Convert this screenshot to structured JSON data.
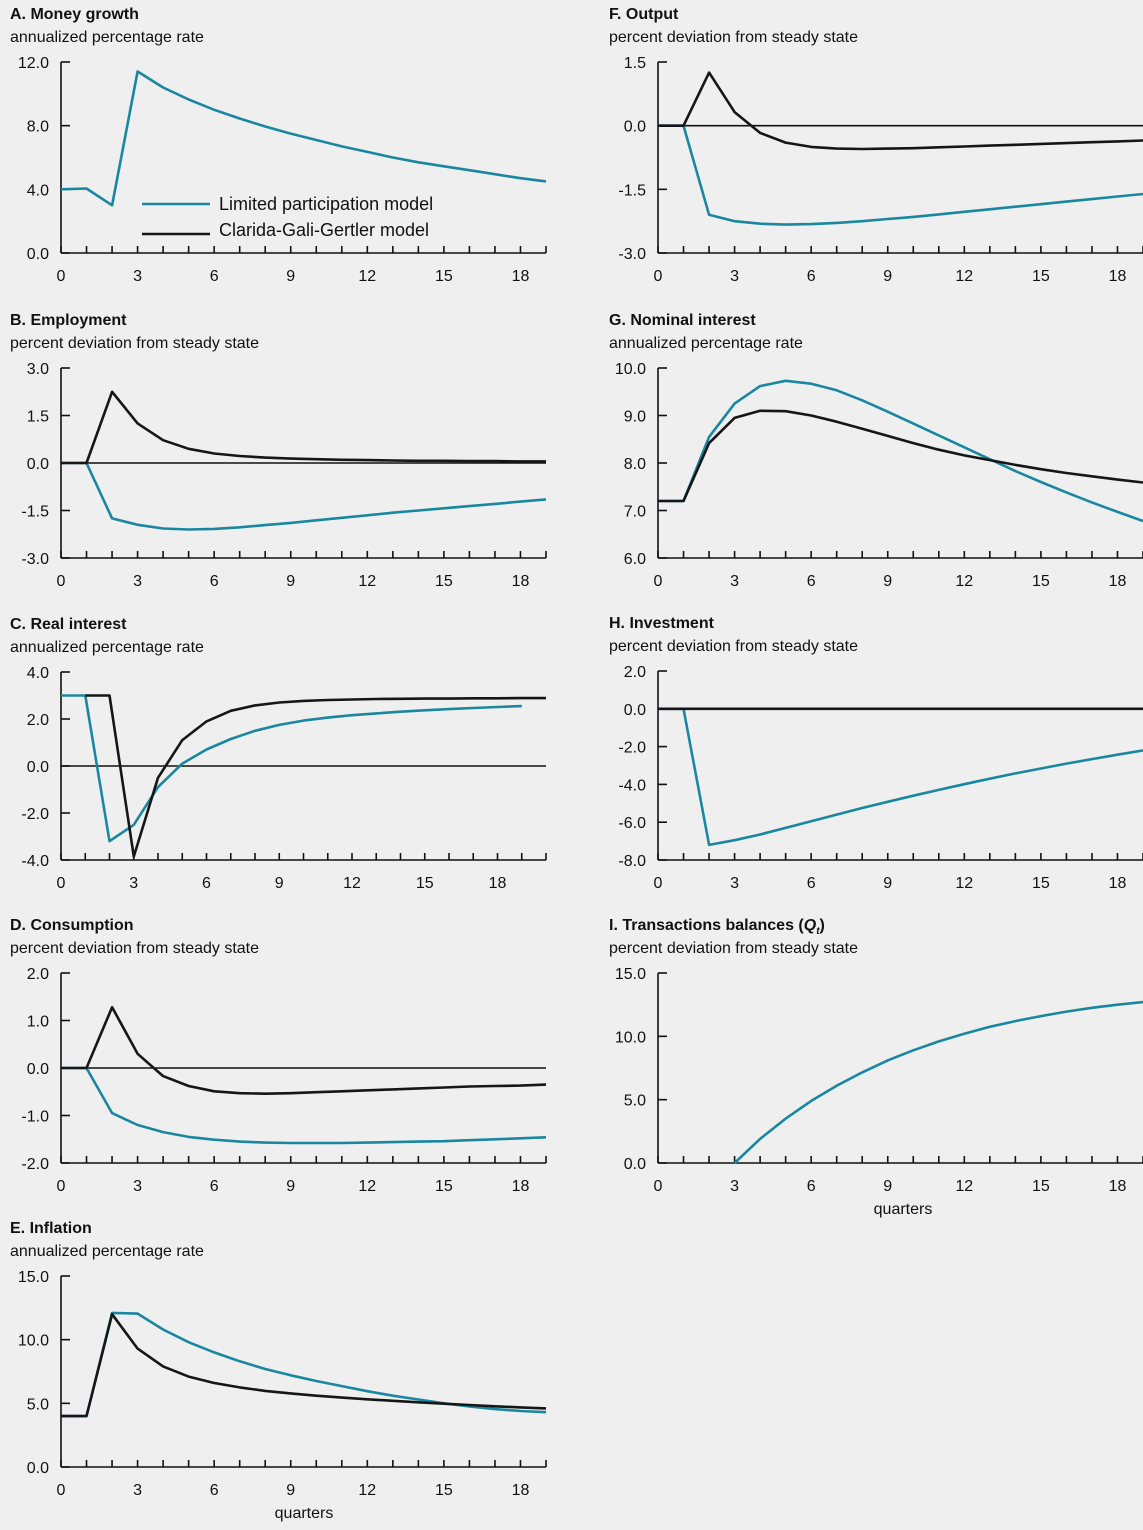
{
  "colors": {
    "limited": "#1a87a0",
    "cgg": "#161616",
    "axis": "#111111",
    "background": "#efefef"
  },
  "legend": {
    "items": [
      {
        "label": "Limited participation model",
        "color": "#1a87a0"
      },
      {
        "label": "Clarida-Gali-Gertler model",
        "color": "#161616"
      }
    ]
  },
  "chart_data": [
    {
      "id": "A",
      "type": "line",
      "title": "A. Money growth",
      "subtitle": "annualized percentage rate",
      "xlabel": "",
      "xlim": [
        0,
        19
      ],
      "xticks": [
        0,
        3,
        6,
        9,
        12,
        15,
        18
      ],
      "ylim": [
        0,
        12
      ],
      "yticks": [
        "0.0",
        "4.0",
        "8.0",
        "12.0"
      ],
      "grid": false,
      "zero_line": false,
      "legend": "inside-bottom-left",
      "series": [
        {
          "name": "Limited participation model",
          "color": "#1a87a0",
          "x": [
            0,
            1,
            2,
            3,
            4,
            5,
            6,
            7,
            8,
            9,
            10,
            11,
            12,
            13,
            14,
            15,
            16,
            17,
            18,
            19
          ],
          "y": [
            4.0,
            4.05,
            3.0,
            11.4,
            10.4,
            9.65,
            9.0,
            8.45,
            7.95,
            7.5,
            7.1,
            6.7,
            6.35,
            6.0,
            5.7,
            5.45,
            5.2,
            4.95,
            4.7,
            4.5
          ]
        }
      ]
    },
    {
      "id": "B",
      "type": "line",
      "title": "B. Employment",
      "subtitle": "percent deviation from steady state",
      "xlabel": "",
      "xlim": [
        0,
        19
      ],
      "xticks": [
        0,
        3,
        6,
        9,
        12,
        15,
        18
      ],
      "ylim": [
        -3,
        3
      ],
      "yticks": [
        "-3.0",
        "-1.5",
        "0.0",
        "1.5",
        "3.0"
      ],
      "grid": false,
      "zero_line": true,
      "series": [
        {
          "name": "Limited participation model",
          "color": "#1a87a0",
          "x": [
            0,
            1,
            2,
            3,
            4,
            5,
            6,
            7,
            8,
            9,
            10,
            11,
            12,
            13,
            14,
            15,
            16,
            17,
            18,
            19
          ],
          "y": [
            0,
            0,
            -1.75,
            -1.95,
            -2.07,
            -2.1,
            -2.08,
            -2.03,
            -1.96,
            -1.89,
            -1.81,
            -1.73,
            -1.65,
            -1.57,
            -1.5,
            -1.43,
            -1.36,
            -1.29,
            -1.22,
            -1.15
          ]
        },
        {
          "name": "Clarida-Gali-Gertler model",
          "color": "#161616",
          "x": [
            0,
            1,
            2,
            3,
            4,
            5,
            6,
            7,
            8,
            9,
            10,
            11,
            12,
            13,
            14,
            15,
            16,
            17,
            18,
            19
          ],
          "y": [
            0,
            0,
            2.25,
            1.25,
            0.72,
            0.45,
            0.3,
            0.22,
            0.17,
            0.14,
            0.12,
            0.1,
            0.09,
            0.08,
            0.07,
            0.07,
            0.06,
            0.06,
            0.05,
            0.05
          ]
        }
      ]
    },
    {
      "id": "C",
      "type": "line",
      "title": "C. Real interest",
      "subtitle": "annualized percentage rate",
      "xlabel": "",
      "xlim": [
        0,
        20
      ],
      "xticks": [
        0,
        3,
        6,
        9,
        12,
        15,
        18
      ],
      "ylim": [
        -4,
        4
      ],
      "yticks": [
        "-4.0",
        "-2.0",
        "0.0",
        "2.0",
        "4.0"
      ],
      "grid": false,
      "zero_line": true,
      "series": [
        {
          "name": "Limited participation model",
          "color": "#1a87a0",
          "x": [
            0,
            1,
            2,
            3,
            4,
            5,
            6,
            7,
            8,
            9,
            10,
            11,
            12,
            13,
            14,
            15,
            16,
            17,
            18,
            19
          ],
          "y": [
            3.0,
            3.0,
            -3.2,
            -2.5,
            -0.9,
            0.1,
            0.7,
            1.15,
            1.5,
            1.75,
            1.93,
            2.06,
            2.16,
            2.24,
            2.31,
            2.37,
            2.42,
            2.47,
            2.51,
            2.55
          ]
        },
        {
          "name": "Clarida-Gali-Gertler model",
          "color": "#161616",
          "x": [
            1,
            2,
            3,
            4,
            5,
            6,
            7,
            8,
            9,
            10,
            11,
            12,
            13,
            14,
            15,
            16,
            17,
            18,
            19,
            20
          ],
          "y": [
            3.0,
            3.0,
            -3.85,
            -0.5,
            1.1,
            1.9,
            2.35,
            2.58,
            2.7,
            2.77,
            2.81,
            2.83,
            2.85,
            2.86,
            2.87,
            2.87,
            2.88,
            2.88,
            2.89,
            2.89
          ]
        }
      ]
    },
    {
      "id": "D",
      "type": "line",
      "title": "D. Consumption",
      "subtitle": "percent deviation from steady state",
      "xlabel": "",
      "xlim": [
        0,
        19
      ],
      "xticks": [
        0,
        3,
        6,
        9,
        12,
        15,
        18
      ],
      "ylim": [
        -2,
        2
      ],
      "yticks": [
        "-2.0",
        "-1.0",
        "0.0",
        "1.0",
        "2.0"
      ],
      "grid": false,
      "zero_line": true,
      "series": [
        {
          "name": "Limited participation model",
          "color": "#1a87a0",
          "x": [
            0,
            1,
            2,
            3,
            4,
            5,
            6,
            7,
            8,
            9,
            10,
            11,
            12,
            13,
            14,
            15,
            16,
            17,
            18,
            19
          ],
          "y": [
            0,
            0,
            -0.95,
            -1.2,
            -1.35,
            -1.45,
            -1.51,
            -1.55,
            -1.57,
            -1.58,
            -1.58,
            -1.58,
            -1.57,
            -1.56,
            -1.55,
            -1.54,
            -1.52,
            -1.5,
            -1.48,
            -1.46
          ]
        },
        {
          "name": "Clarida-Gali-Gertler model",
          "color": "#161616",
          "x": [
            0,
            1,
            2,
            3,
            4,
            5,
            6,
            7,
            8,
            9,
            10,
            11,
            12,
            13,
            14,
            15,
            16,
            17,
            18,
            19
          ],
          "y": [
            0,
            0,
            1.28,
            0.3,
            -0.17,
            -0.38,
            -0.49,
            -0.53,
            -0.54,
            -0.53,
            -0.51,
            -0.49,
            -0.47,
            -0.45,
            -0.43,
            -0.41,
            -0.39,
            -0.38,
            -0.37,
            -0.35
          ]
        }
      ]
    },
    {
      "id": "E",
      "type": "line",
      "title": "E. Inflation",
      "subtitle": "annualized percentage rate",
      "xlabel": "quarters",
      "xlim": [
        0,
        19
      ],
      "xticks": [
        0,
        3,
        6,
        9,
        12,
        15,
        18
      ],
      "ylim": [
        0,
        15
      ],
      "yticks": [
        "0.0",
        "5.0",
        "10.0",
        "15.0"
      ],
      "grid": false,
      "zero_line": false,
      "series": [
        {
          "name": "Limited participation model",
          "color": "#1a87a0",
          "x": [
            0,
            1,
            2,
            3,
            4,
            5,
            6,
            7,
            8,
            9,
            10,
            11,
            12,
            13,
            14,
            15,
            16,
            17,
            18,
            19
          ],
          "y": [
            4.0,
            4.0,
            12.1,
            12.05,
            10.8,
            9.8,
            9.0,
            8.3,
            7.7,
            7.2,
            6.75,
            6.35,
            5.95,
            5.6,
            5.3,
            5.0,
            4.75,
            4.55,
            4.4,
            4.3
          ]
        },
        {
          "name": "Clarida-Gali-Gertler model",
          "color": "#161616",
          "x": [
            0,
            1,
            2,
            3,
            4,
            5,
            6,
            7,
            8,
            9,
            10,
            11,
            12,
            13,
            14,
            15,
            16,
            17,
            18,
            19
          ],
          "y": [
            4.0,
            4.0,
            12.0,
            9.3,
            7.9,
            7.1,
            6.6,
            6.25,
            5.98,
            5.78,
            5.6,
            5.45,
            5.32,
            5.2,
            5.08,
            4.97,
            4.87,
            4.77,
            4.68,
            4.6
          ]
        }
      ]
    },
    {
      "id": "F",
      "type": "line",
      "title": "F. Output",
      "subtitle": "percent deviation from steady state",
      "xlabel": "",
      "xlim": [
        0,
        19
      ],
      "xticks": [
        0,
        3,
        6,
        9,
        12,
        15,
        18
      ],
      "ylim": [
        -3,
        1.5
      ],
      "yticks": [
        "-3.0",
        "-1.5",
        "0.0",
        "1.5"
      ],
      "grid": false,
      "zero_line": true,
      "series": [
        {
          "name": "Limited participation model",
          "color": "#1a87a0",
          "x": [
            0,
            1,
            2,
            3,
            4,
            5,
            6,
            7,
            8,
            9,
            10,
            11,
            12,
            13,
            14,
            15,
            16,
            17,
            18,
            19
          ],
          "y": [
            0,
            0,
            -2.1,
            -2.25,
            -2.31,
            -2.33,
            -2.32,
            -2.29,
            -2.25,
            -2.2,
            -2.15,
            -2.09,
            -2.03,
            -1.97,
            -1.91,
            -1.85,
            -1.79,
            -1.73,
            -1.67,
            -1.61
          ]
        },
        {
          "name": "Clarida-Gali-Gertler model",
          "color": "#161616",
          "x": [
            0,
            1,
            2,
            3,
            4,
            5,
            6,
            7,
            8,
            9,
            10,
            11,
            12,
            13,
            14,
            15,
            16,
            17,
            18,
            19
          ],
          "y": [
            0,
            0,
            1.25,
            0.32,
            -0.17,
            -0.4,
            -0.5,
            -0.54,
            -0.55,
            -0.54,
            -0.53,
            -0.51,
            -0.49,
            -0.47,
            -0.45,
            -0.43,
            -0.41,
            -0.39,
            -0.37,
            -0.35
          ]
        }
      ]
    },
    {
      "id": "G",
      "type": "line",
      "title": "G. Nominal interest",
      "subtitle": "annualized percentage rate",
      "xlabel": "",
      "xlim": [
        0,
        19
      ],
      "xticks": [
        0,
        3,
        6,
        9,
        12,
        15,
        18
      ],
      "ylim": [
        6,
        10
      ],
      "yticks": [
        "6.0",
        "7.0",
        "8.0",
        "9.0",
        "10.0"
      ],
      "grid": false,
      "zero_line": false,
      "series": [
        {
          "name": "Limited participation model",
          "color": "#1a87a0",
          "x": [
            0,
            1,
            2,
            3,
            4,
            5,
            6,
            7,
            8,
            9,
            10,
            11,
            12,
            13,
            14,
            15,
            16,
            17,
            18,
            19
          ],
          "y": [
            7.2,
            7.2,
            8.55,
            9.25,
            9.62,
            9.73,
            9.67,
            9.53,
            9.32,
            9.08,
            8.83,
            8.58,
            8.33,
            8.08,
            7.83,
            7.6,
            7.38,
            7.17,
            6.97,
            6.78
          ]
        },
        {
          "name": "Clarida-Gali-Gertler model",
          "color": "#161616",
          "x": [
            0,
            1,
            2,
            3,
            4,
            5,
            6,
            7,
            8,
            9,
            10,
            11,
            12,
            13,
            14,
            15,
            16,
            17,
            18,
            19
          ],
          "y": [
            7.2,
            7.2,
            8.42,
            8.95,
            9.1,
            9.09,
            9.0,
            8.87,
            8.72,
            8.57,
            8.42,
            8.28,
            8.16,
            8.06,
            7.96,
            7.87,
            7.79,
            7.72,
            7.65,
            7.59
          ]
        }
      ]
    },
    {
      "id": "H",
      "type": "line",
      "title": "H. Investment",
      "subtitle": "percent deviation from steady state",
      "xlabel": "",
      "xlim": [
        0,
        19
      ],
      "xticks": [
        0,
        3,
        6,
        9,
        12,
        15,
        18
      ],
      "ylim": [
        -8,
        2
      ],
      "yticks": [
        "-8.0",
        "-6.0",
        "-4.0",
        "-2.0",
        "0.0",
        "2.0"
      ],
      "grid": false,
      "zero_line": true,
      "series": [
        {
          "name": "Limited participation model",
          "color": "#1a87a0",
          "x": [
            0,
            1,
            2,
            3,
            4,
            5,
            6,
            7,
            8,
            9,
            10,
            11,
            12,
            13,
            14,
            15,
            16,
            17,
            18,
            19
          ],
          "y": [
            0,
            0,
            -7.2,
            -6.95,
            -6.65,
            -6.3,
            -5.95,
            -5.6,
            -5.25,
            -4.92,
            -4.6,
            -4.29,
            -3.99,
            -3.7,
            -3.42,
            -3.16,
            -2.9,
            -2.66,
            -2.43,
            -2.2
          ]
        },
        {
          "name": "Clarida-Gali-Gertler model",
          "color": "#161616",
          "x": [
            0,
            19
          ],
          "y": [
            0,
            0
          ]
        }
      ]
    },
    {
      "id": "I",
      "type": "line",
      "title": "I. Transactions balances (",
      "title_symbol": "Q",
      "title_subscript": "t",
      "title_end": ")",
      "subtitle": "percent deviation from steady state",
      "xlabel": "quarters",
      "xlim": [
        0,
        19
      ],
      "xticks": [
        0,
        3,
        6,
        9,
        12,
        15,
        18
      ],
      "ylim": [
        0,
        15
      ],
      "yticks": [
        "0.0",
        "5.0",
        "10.0",
        "15.0"
      ],
      "grid": false,
      "zero_line": false,
      "series": [
        {
          "name": "Limited participation model",
          "color": "#1a87a0",
          "x": [
            3,
            4,
            5,
            6,
            7,
            8,
            9,
            10,
            11,
            12,
            13,
            14,
            15,
            16,
            17,
            18,
            19
          ],
          "y": [
            0,
            1.9,
            3.5,
            4.9,
            6.1,
            7.15,
            8.1,
            8.9,
            9.6,
            10.2,
            10.75,
            11.2,
            11.6,
            11.95,
            12.25,
            12.5,
            12.7
          ]
        }
      ]
    }
  ]
}
